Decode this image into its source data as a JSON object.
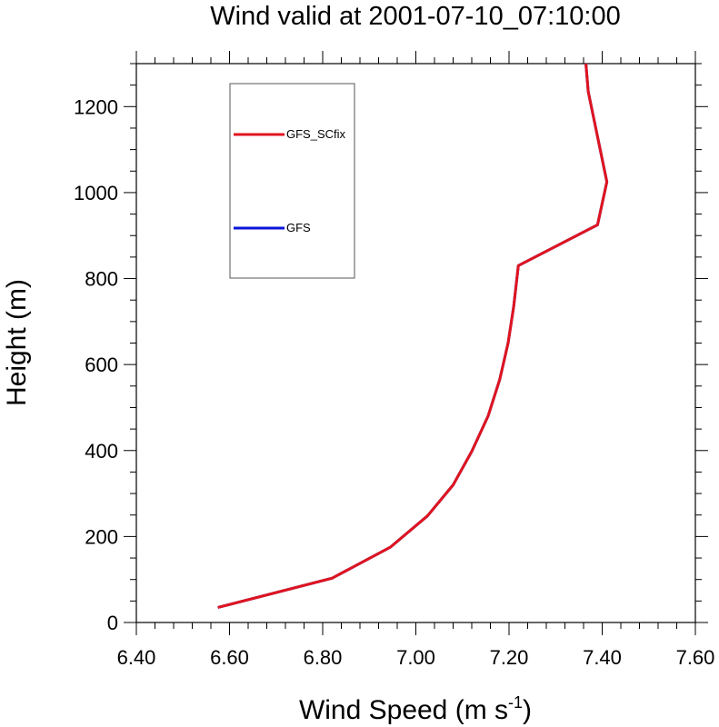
{
  "chart_data": {
    "type": "line",
    "title": "Wind valid at 2001-07-10_07:10:00",
    "xlabel": "Wind Speed (m s",
    "xlabel_superscript": "-1",
    "xlabel_close": ")",
    "ylabel": "Height (m)",
    "xlim": [
      6.4,
      7.6
    ],
    "ylim": [
      0,
      1300
    ],
    "x_ticks": [
      6.4,
      6.6,
      6.8,
      7.0,
      7.2,
      7.4,
      7.6
    ],
    "x_tick_labels": [
      "6.40",
      "6.60",
      "6.80",
      "7.00",
      "7.20",
      "7.40",
      "7.60"
    ],
    "y_ticks": [
      0,
      200,
      400,
      600,
      800,
      1000,
      1200
    ],
    "y_tick_labels": [
      "0",
      "200",
      "400",
      "600",
      "800",
      "1000",
      "1200"
    ],
    "grid": false,
    "legend_position": "top-left",
    "series": [
      {
        "name": "GFS_SCfix",
        "color": "#e0141e",
        "points": [
          [
            6.575,
            35
          ],
          [
            6.82,
            103
          ],
          [
            6.945,
            175
          ],
          [
            7.025,
            248
          ],
          [
            7.08,
            320
          ],
          [
            7.12,
            398
          ],
          [
            7.155,
            480
          ],
          [
            7.18,
            565
          ],
          [
            7.198,
            650
          ],
          [
            7.21,
            735
          ],
          [
            7.22,
            830
          ],
          [
            7.39,
            925
          ],
          [
            7.41,
            1025
          ],
          [
            7.39,
            1130
          ],
          [
            7.37,
            1235
          ],
          [
            7.365,
            1300
          ]
        ]
      },
      {
        "name": "GFS",
        "color": "#0a14d8",
        "points": [
          [
            6.575,
            35
          ],
          [
            6.82,
            103
          ],
          [
            6.945,
            175
          ],
          [
            7.025,
            248
          ],
          [
            7.08,
            320
          ],
          [
            7.12,
            398
          ],
          [
            7.155,
            480
          ],
          [
            7.18,
            565
          ],
          [
            7.198,
            650
          ],
          [
            7.21,
            735
          ],
          [
            7.22,
            830
          ],
          [
            7.39,
            925
          ],
          [
            7.41,
            1025
          ],
          [
            7.39,
            1130
          ],
          [
            7.37,
            1235
          ],
          [
            7.365,
            1300
          ]
        ]
      }
    ]
  }
}
